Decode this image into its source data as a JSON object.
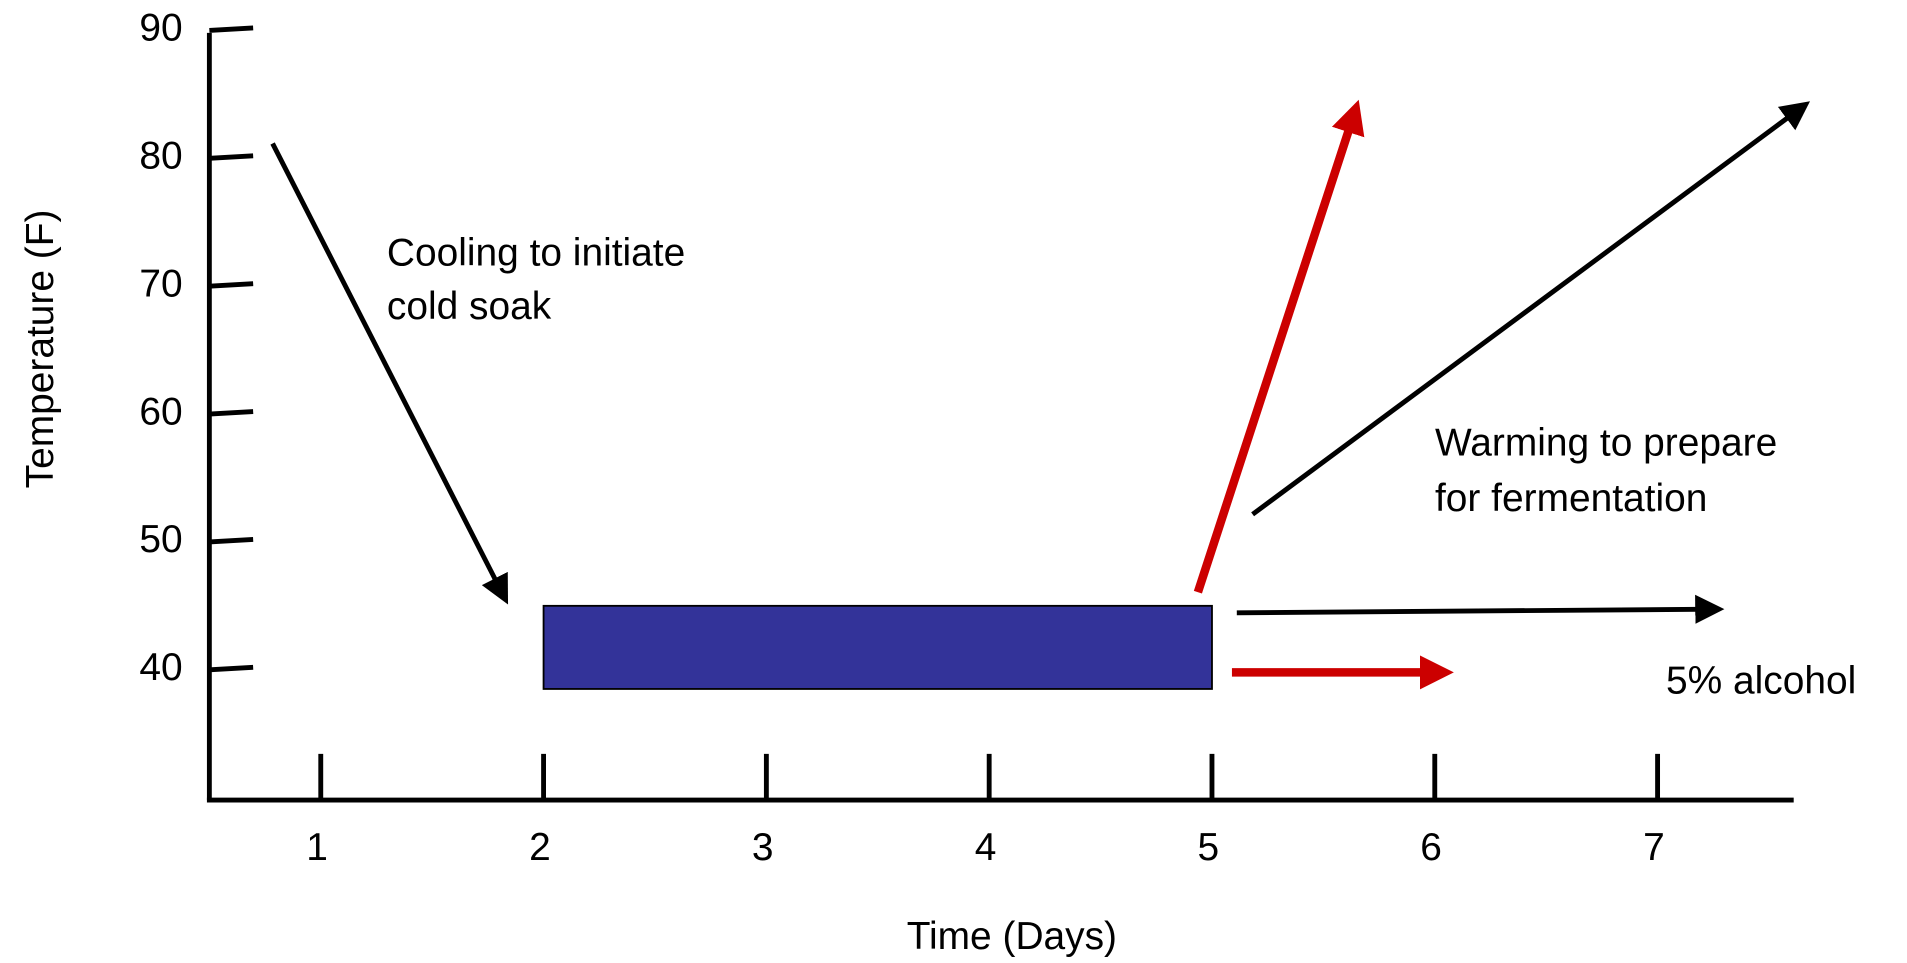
{
  "chart_data": {
    "type": "range",
    "x_label": "Time (Days)",
    "y_label": "Temperature (F)",
    "xlim": [
      0.5,
      7.6
    ],
    "xticks": [
      1,
      2,
      3,
      4,
      5,
      6,
      7
    ],
    "ylim": [
      30,
      90
    ],
    "yticks": [
      40,
      50,
      60,
      70,
      80,
      90
    ],
    "bars": [
      {
        "x": [
          2,
          5
        ],
        "y": [
          38.5,
          45
        ],
        "color": "#333399"
      }
    ],
    "annotations": [
      {
        "lines": [
          "Cooling to initiate",
          "cold soak"
        ]
      },
      {
        "lines": [
          "Warming to prepare",
          "for fermentation"
        ]
      },
      {
        "lines": [
          "5% alcohol"
        ]
      }
    ]
  }
}
